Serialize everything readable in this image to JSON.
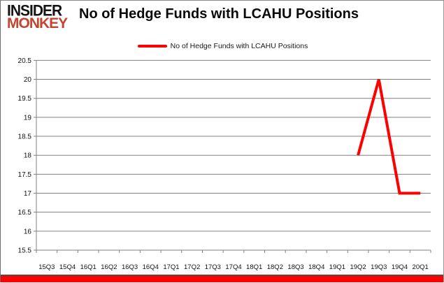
{
  "brand": {
    "line1": "INSIDER",
    "line2": "MONKEY",
    "line1_color": "#141414",
    "line2_color": "#c44432"
  },
  "header": {
    "title": "No of Hedge Funds with LCAHU Positions"
  },
  "legend": {
    "label": "No of Hedge Funds with LCAHU Positions",
    "line_color": "#ff0000"
  },
  "chart_data": {
    "type": "line",
    "title": "No of Hedge Funds with LCAHU Positions",
    "categories": [
      "15Q3",
      "15Q4",
      "16Q1",
      "16Q2",
      "16Q3",
      "16Q4",
      "17Q1",
      "17Q2",
      "17Q3",
      "17Q4",
      "18Q1",
      "18Q2",
      "18Q3",
      "18Q4",
      "19Q1",
      "19Q2",
      "19Q3",
      "19Q4",
      "20Q1"
    ],
    "series": [
      {
        "name": "No of Hedge Funds with LCAHU Positions",
        "color": "#ff0000",
        "values": [
          null,
          null,
          null,
          null,
          null,
          null,
          null,
          null,
          null,
          null,
          null,
          null,
          null,
          null,
          null,
          18,
          20,
          17,
          17
        ]
      }
    ],
    "xlabel": "",
    "ylabel": "",
    "ylim": [
      15.5,
      20.5
    ],
    "ytick_step": 0.5,
    "yticks": [
      15.5,
      16,
      16.5,
      17,
      17.5,
      18,
      18.5,
      19,
      19.5,
      20,
      20.5
    ],
    "grid": true,
    "legend_position": "top",
    "grid_color": "#808080",
    "accent_bar_color": "#ff0000"
  }
}
